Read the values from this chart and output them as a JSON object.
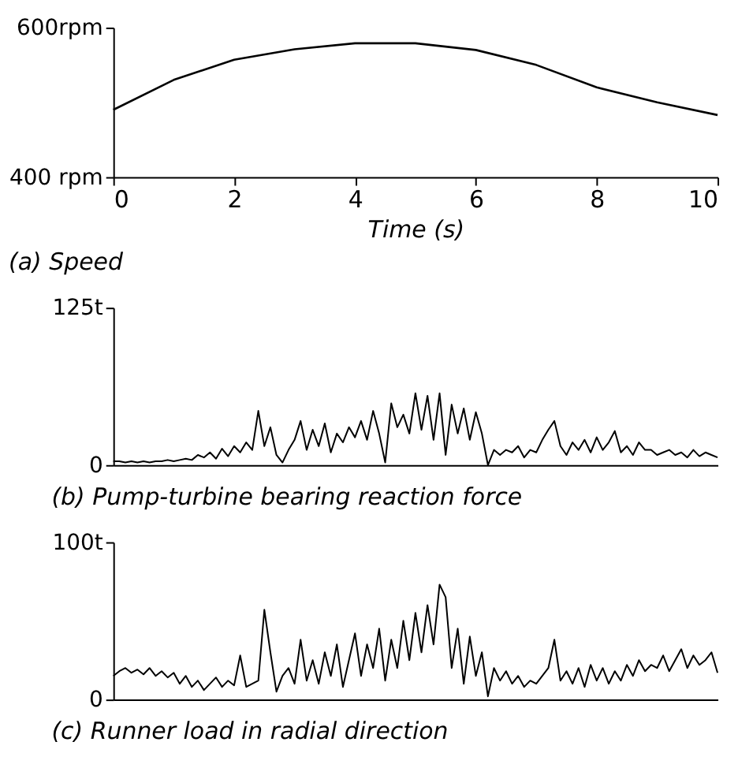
{
  "chart_data": [
    {
      "type": "line",
      "title": "(a) Speed",
      "xlabel": "Time (s)",
      "x": [
        0,
        1,
        2,
        3,
        4,
        5,
        6,
        7,
        8,
        9,
        10
      ],
      "series": [
        {
          "color": "#000000",
          "values": [
            490,
            530,
            557,
            571,
            579,
            579,
            570,
            550,
            520,
            500,
            483
          ]
        }
      ],
      "xlim": [
        0,
        10
      ],
      "xticks": [
        0,
        2,
        4,
        6,
        8,
        10
      ],
      "ylim": [
        400,
        600
      ],
      "yticks": [
        {
          "value": 400,
          "label": "400 rpm"
        },
        {
          "value": 600,
          "label": "600rpm"
        }
      ]
    },
    {
      "type": "line",
      "title": "(b) Pump-turbine bearing reaction force",
      "x": [
        0,
        0.1,
        0.2,
        0.3,
        0.4,
        0.5,
        0.6,
        0.7,
        0.8,
        0.9,
        1,
        1.1,
        1.2,
        1.3,
        1.4,
        1.5,
        1.6,
        1.7,
        1.8,
        1.9,
        2,
        2.1,
        2.2,
        2.3,
        2.4,
        2.5,
        2.6,
        2.7,
        2.8,
        2.9,
        3,
        3.1,
        3.2,
        3.3,
        3.4,
        3.5,
        3.6,
        3.7,
        3.8,
        3.9,
        4,
        4.1,
        4.2,
        4.3,
        4.4,
        4.5,
        4.6,
        4.7,
        4.8,
        4.9,
        5,
        5.1,
        5.2,
        5.3,
        5.4,
        5.5,
        5.6,
        5.7,
        5.8,
        5.9,
        6,
        6.1,
        6.2,
        6.3,
        6.4,
        6.5,
        6.6,
        6.7,
        6.8,
        6.9,
        7,
        7.1,
        7.2,
        7.3,
        7.4,
        7.5,
        7.6,
        7.7,
        7.8,
        7.9,
        8,
        8.1,
        8.2,
        8.3,
        8.4,
        8.5,
        8.6,
        8.7,
        8.8,
        8.9,
        9,
        9.1,
        9.2,
        9.3,
        9.4,
        9.5,
        9.6,
        9.7,
        9.8,
        9.9,
        10
      ],
      "series": [
        {
          "color": "#000000",
          "values": [
            3,
            3,
            2,
            3,
            2,
            3,
            2,
            3,
            3,
            4,
            3,
            4,
            5,
            4,
            8,
            6,
            10,
            5,
            13,
            7,
            15,
            10,
            18,
            12,
            43,
            15,
            30,
            8,
            2,
            12,
            20,
            35,
            12,
            28,
            15,
            33,
            10,
            25,
            18,
            30,
            22,
            35,
            20,
            43,
            25,
            2,
            49,
            30,
            40,
            25,
            57,
            28,
            55,
            20,
            57,
            8,
            48,
            25,
            45,
            20,
            42,
            25,
            0,
            12,
            8,
            12,
            10,
            15,
            6,
            12,
            10,
            20,
            28,
            35,
            15,
            8,
            18,
            12,
            20,
            10,
            22,
            12,
            18,
            27,
            10,
            15,
            8,
            18,
            12,
            12,
            8,
            10,
            12,
            8,
            10,
            6,
            12,
            7,
            10,
            8,
            6
          ]
        }
      ],
      "xlim": [
        0,
        10
      ],
      "ylim": [
        0,
        125
      ],
      "yticks": [
        0,
        {
          "value": 125,
          "label": "125t"
        }
      ],
      "tick_labels": "y"
    },
    {
      "type": "line",
      "title": "(c) Runner load in radial direction",
      "x": [
        0,
        0.1,
        0.2,
        0.3,
        0.4,
        0.5,
        0.6,
        0.7,
        0.8,
        0.9,
        1,
        1.1,
        1.2,
        1.3,
        1.4,
        1.5,
        1.6,
        1.7,
        1.8,
        1.9,
        2,
        2.1,
        2.2,
        2.3,
        2.4,
        2.5,
        2.6,
        2.7,
        2.8,
        2.9,
        3,
        3.1,
        3.2,
        3.3,
        3.4,
        3.5,
        3.6,
        3.7,
        3.8,
        3.9,
        4,
        4.1,
        4.2,
        4.3,
        4.4,
        4.5,
        4.6,
        4.7,
        4.8,
        4.9,
        5,
        5.1,
        5.2,
        5.3,
        5.4,
        5.5,
        5.6,
        5.7,
        5.8,
        5.9,
        6,
        6.1,
        6.2,
        6.3,
        6.4,
        6.5,
        6.6,
        6.7,
        6.8,
        6.9,
        7,
        7.1,
        7.2,
        7.3,
        7.4,
        7.5,
        7.6,
        7.7,
        7.8,
        7.9,
        8,
        8.1,
        8.2,
        8.3,
        8.4,
        8.5,
        8.6,
        8.7,
        8.8,
        8.9,
        9,
        9.1,
        9.2,
        9.3,
        9.4,
        9.5,
        9.6,
        9.7,
        9.8,
        9.9,
        10
      ],
      "series": [
        {
          "color": "#000000",
          "values": [
            15,
            18,
            20,
            17,
            19,
            16,
            20,
            15,
            18,
            14,
            17,
            10,
            15,
            8,
            12,
            6,
            10,
            14,
            8,
            12,
            9,
            28,
            8,
            10,
            12,
            57,
            30,
            5,
            15,
            20,
            10,
            38,
            12,
            25,
            10,
            30,
            15,
            35,
            8,
            25,
            42,
            15,
            35,
            20,
            45,
            12,
            38,
            20,
            50,
            25,
            55,
            30,
            60,
            35,
            73,
            65,
            20,
            45,
            10,
            40,
            15,
            30,
            2,
            20,
            12,
            18,
            10,
            15,
            8,
            12,
            10,
            15,
            20,
            38,
            12,
            18,
            10,
            20,
            8,
            22,
            12,
            20,
            10,
            18,
            12,
            22,
            15,
            25,
            18,
            22,
            20,
            28,
            18,
            25,
            32,
            20,
            28,
            22,
            25,
            30,
            17
          ]
        }
      ],
      "xlim": [
        0,
        10
      ],
      "ylim": [
        0,
        100
      ],
      "yticks": [
        0,
        {
          "value": 100,
          "label": "100t"
        }
      ],
      "tick_labels": "y"
    }
  ]
}
